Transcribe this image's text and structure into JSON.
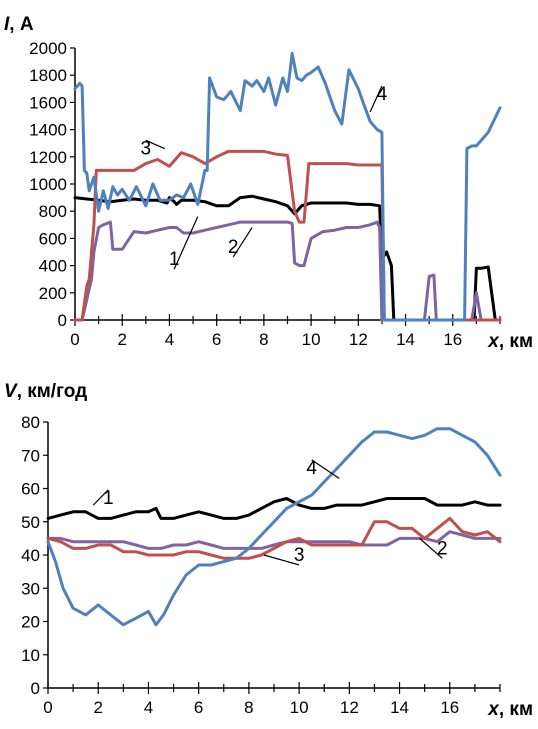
{
  "chart_data": [
    {
      "type": "line",
      "title": "",
      "ylabel_var": "I",
      "ylabel_unit": ", А",
      "xlabel_var": "x",
      "xlabel_unit": ", км",
      "xlim": [
        0,
        18
      ],
      "ylim": [
        0,
        2000
      ],
      "xticks": [
        0,
        2,
        4,
        6,
        8,
        10,
        12,
        14,
        16
      ],
      "yticks": [
        0,
        200,
        400,
        600,
        800,
        1000,
        1200,
        1400,
        1600,
        1800,
        2000
      ],
      "grid": false,
      "series": [
        {
          "label": "1",
          "color": "#000000",
          "x": [
            0,
            0.5,
            1.0,
            1.5,
            2.0,
            2.5,
            3.0,
            3.5,
            3.9,
            4.0,
            4.2,
            4.3,
            4.5,
            5.0,
            5.5,
            6.0,
            6.5,
            7.0,
            7.5,
            8.0,
            8.5,
            9.0,
            9.3,
            9.6,
            10.0,
            10.5,
            11.0,
            11.5,
            12.0,
            12.5,
            12.9,
            13.0,
            13.2,
            13.4,
            13.5,
            13.8,
            14.0,
            14.5,
            14.7,
            14.8,
            15.0,
            15.3,
            15.5,
            15.6,
            16.0,
            16.5,
            16.9,
            17.0,
            17.2,
            17.5,
            17.8,
            18.0
          ],
          "y": [
            900,
            890,
            880,
            870,
            880,
            890,
            880,
            880,
            860,
            900,
            870,
            850,
            880,
            880,
            870,
            840,
            840,
            900,
            910,
            890,
            870,
            840,
            780,
            840,
            860,
            860,
            860,
            860,
            850,
            850,
            840,
            450,
            500,
            400,
            0,
            0,
            0,
            0,
            0,
            0,
            0,
            0,
            0,
            0,
            0,
            0,
            0,
            380,
            380,
            390,
            0,
            0
          ]
        },
        {
          "label": "2",
          "color": "#8064A2",
          "x": [
            0,
            0.3,
            0.5,
            0.7,
            0.8,
            1.0,
            1.2,
            1.5,
            1.6,
            1.8,
            2.0,
            2.5,
            3.0,
            3.5,
            4.0,
            4.3,
            4.6,
            5.0,
            5.5,
            6.0,
            6.5,
            7.0,
            7.5,
            8.0,
            8.5,
            9.0,
            9.2,
            9.3,
            9.5,
            9.7,
            10.0,
            10.5,
            11.0,
            11.5,
            12.0,
            12.5,
            12.8,
            12.9,
            13.0,
            14.0,
            14.5,
            14.8,
            15.0,
            15.2,
            15.3,
            15.5,
            16.0,
            16.5,
            16.8,
            17.0,
            17.2,
            17.5,
            18.0
          ],
          "y": [
            0,
            0,
            150,
            300,
            500,
            680,
            700,
            720,
            520,
            520,
            520,
            650,
            640,
            660,
            680,
            680,
            640,
            640,
            660,
            680,
            700,
            720,
            720,
            720,
            720,
            720,
            710,
            420,
            400,
            400,
            600,
            650,
            660,
            680,
            680,
            700,
            720,
            680,
            0,
            0,
            0,
            0,
            320,
            330,
            0,
            0,
            0,
            0,
            0,
            200,
            0,
            0,
            0
          ]
        },
        {
          "label": "3",
          "color": "#C0504D",
          "x": [
            0,
            0.3,
            0.5,
            0.6,
            0.8,
            0.9,
            1.0,
            1.5,
            2.0,
            2.5,
            3.0,
            3.5,
            4.0,
            4.5,
            5.0,
            5.5,
            6.0,
            6.5,
            7.0,
            7.5,
            8.0,
            8.5,
            9.0,
            9.3,
            9.5,
            9.7,
            9.9,
            10.0,
            10.5,
            11.0,
            11.5,
            12.0,
            12.5,
            13.0,
            13.1,
            13.3,
            14.0,
            15.0,
            16.0,
            17.0,
            18.0
          ],
          "y": [
            0,
            0,
            250,
            300,
            700,
            1100,
            1100,
            1100,
            1100,
            1100,
            1150,
            1180,
            1130,
            1230,
            1200,
            1150,
            1200,
            1240,
            1240,
            1240,
            1240,
            1220,
            1210,
            800,
            720,
            720,
            1150,
            1150,
            1150,
            1150,
            1150,
            1140,
            1140,
            1140,
            0,
            0,
            0,
            0,
            0,
            0,
            0
          ]
        },
        {
          "label": "4",
          "color": "#4F81BD",
          "x": [
            0,
            0.2,
            0.3,
            0.4,
            0.5,
            0.6,
            0.8,
            1.0,
            1.2,
            1.4,
            1.6,
            1.8,
            2.0,
            2.3,
            2.6,
            3.0,
            3.3,
            3.6,
            4.0,
            4.3,
            4.6,
            4.9,
            5.2,
            5.5,
            5.6,
            5.7,
            6.0,
            6.3,
            6.6,
            7.0,
            7.2,
            7.5,
            7.7,
            8.0,
            8.2,
            8.5,
            8.8,
            9.0,
            9.2,
            9.4,
            9.6,
            9.8,
            10.0,
            10.3,
            10.6,
            11.0,
            11.3,
            11.6,
            12.0,
            12.2,
            12.5,
            12.8,
            13.0,
            13.1,
            13.2,
            14.0,
            15.0,
            16.0,
            16.5,
            16.6,
            16.8,
            17.0,
            17.5,
            18.0
          ],
          "y": [
            1700,
            1740,
            1720,
            1100,
            1080,
            950,
            1050,
            800,
            950,
            820,
            980,
            920,
            960,
            880,
            980,
            840,
            1000,
            880,
            880,
            920,
            900,
            1000,
            850,
            1100,
            1100,
            1780,
            1640,
            1620,
            1680,
            1540,
            1760,
            1720,
            1760,
            1680,
            1780,
            1580,
            1780,
            1680,
            1960,
            1780,
            1760,
            1800,
            1820,
            1860,
            1740,
            1540,
            1440,
            1840,
            1700,
            1600,
            1460,
            1400,
            1380,
            0,
            0,
            0,
            0,
            0,
            0,
            1260,
            1280,
            1280,
            1380,
            1560
          ]
        }
      ]
    },
    {
      "type": "line",
      "title": "",
      "ylabel_var": "V",
      "ylabel_unit": ", км/год",
      "xlabel_var": "x",
      "xlabel_unit": ", км",
      "xlim": [
        0,
        18
      ],
      "ylim": [
        0,
        80
      ],
      "xticks": [
        0,
        2,
        4,
        6,
        8,
        10,
        12,
        14,
        16
      ],
      "yticks": [
        0,
        10,
        20,
        30,
        40,
        50,
        60,
        70,
        80
      ],
      "grid": false,
      "series": [
        {
          "label": "1",
          "color": "#000000",
          "x": [
            0,
            0.5,
            1.0,
            1.5,
            2.0,
            2.5,
            3.0,
            3.5,
            4.0,
            4.3,
            4.5,
            5.0,
            5.5,
            6.0,
            6.5,
            7.0,
            7.5,
            8.0,
            8.5,
            9.0,
            9.5,
            10.0,
            10.5,
            11.0,
            11.5,
            12.0,
            12.5,
            13.0,
            13.5,
            14.0,
            14.5,
            15.0,
            15.5,
            16.0,
            16.5,
            17.0,
            17.5,
            18.0
          ],
          "y": [
            51,
            52,
            53,
            53,
            51,
            51,
            52,
            53,
            53,
            54,
            51,
            51,
            52,
            53,
            52,
            51,
            51,
            52,
            54,
            56,
            57,
            55,
            54,
            54,
            55,
            55,
            55,
            56,
            57,
            57,
            57,
            57,
            55,
            55,
            55,
            56,
            55,
            55
          ]
        },
        {
          "label": "2",
          "color": "#8064A2",
          "x": [
            0,
            0.5,
            1.0,
            1.5,
            2.0,
            2.5,
            3.0,
            3.5,
            4.0,
            4.5,
            5.0,
            5.5,
            6.0,
            6.5,
            7.0,
            7.5,
            8.0,
            8.5,
            9.0,
            9.5,
            10.0,
            10.5,
            11.0,
            11.5,
            12.0,
            12.5,
            13.0,
            13.5,
            14.0,
            14.5,
            15.0,
            15.5,
            16.0,
            16.5,
            17.0,
            17.5,
            18.0
          ],
          "y": [
            45,
            45,
            44,
            44,
            44,
            44,
            44,
            43,
            42,
            42,
            43,
            43,
            44,
            43,
            42,
            42,
            42,
            42,
            43,
            44,
            44,
            44,
            44,
            44,
            44,
            43,
            43,
            43,
            45,
            45,
            45,
            44,
            47,
            46,
            45,
            45,
            45
          ]
        },
        {
          "label": "3",
          "color": "#C0504D",
          "x": [
            0,
            0.5,
            1.0,
            1.5,
            2.0,
            2.5,
            3.0,
            3.5,
            4.0,
            4.5,
            5.0,
            5.5,
            6.0,
            6.5,
            7.0,
            7.5,
            8.0,
            8.5,
            9.0,
            9.5,
            10.0,
            10.5,
            11.0,
            11.5,
            12.0,
            12.5,
            13.0,
            13.5,
            14.0,
            14.5,
            15.0,
            15.5,
            16.0,
            16.5,
            17.0,
            17.5,
            18.0
          ],
          "y": [
            45,
            44,
            42,
            42,
            43,
            43,
            41,
            41,
            40,
            40,
            40,
            41,
            41,
            40,
            39,
            39,
            39,
            40,
            42,
            44,
            45,
            43,
            43,
            43,
            43,
            43,
            50,
            50,
            48,
            48,
            45,
            48,
            51,
            47,
            46,
            47,
            44
          ]
        },
        {
          "label": "4",
          "color": "#4F81BD",
          "x": [
            0,
            0.3,
            0.6,
            1.0,
            1.5,
            2.0,
            2.5,
            3.0,
            3.5,
            4.0,
            4.3,
            4.6,
            5.0,
            5.5,
            6.0,
            6.5,
            7.0,
            7.5,
            8.0,
            8.5,
            9.0,
            9.5,
            10.0,
            10.5,
            11.0,
            11.5,
            12.0,
            12.5,
            13.0,
            13.5,
            14.0,
            14.5,
            15.0,
            15.5,
            16.0,
            16.5,
            17.0,
            17.5,
            18.0
          ],
          "y": [
            44,
            38,
            30,
            24,
            22,
            25,
            22,
            19,
            21,
            23,
            19,
            22,
            28,
            34,
            37,
            37,
            38,
            39,
            42,
            46,
            50,
            54,
            56,
            58,
            62,
            66,
            70,
            74,
            77,
            77,
            76,
            75,
            76,
            78,
            78,
            76,
            74,
            70,
            64
          ]
        }
      ]
    }
  ],
  "annotations": [
    [
      {
        "text": "1",
        "x": 4.2,
        "y": 300,
        "tx": 5.2,
        "ty": 760
      },
      {
        "text": "2",
        "x": 6.7,
        "y": 390,
        "tx": 7.5,
        "ty": 680
      },
      {
        "text": "3",
        "x": 3.0,
        "y": 1380,
        "tx": 3.8,
        "ty": 1260
      },
      {
        "text": "4",
        "x": 13.0,
        "y": 1780,
        "tx": 12.5,
        "ty": 1530
      }
    ],
    [
      {
        "text": "1",
        "x": 2.4,
        "y": 62,
        "tx": 1.8,
        "ty": 55
      },
      {
        "text": "2",
        "x": 15.7,
        "y": 36,
        "tx": 14.8,
        "ty": 45
      },
      {
        "text": "3",
        "x": 10.0,
        "y": 34,
        "tx": 8.6,
        "ty": 40
      },
      {
        "text": "4",
        "x": 10.5,
        "y": 71,
        "tx": 11.6,
        "ty": 63
      }
    ]
  ]
}
